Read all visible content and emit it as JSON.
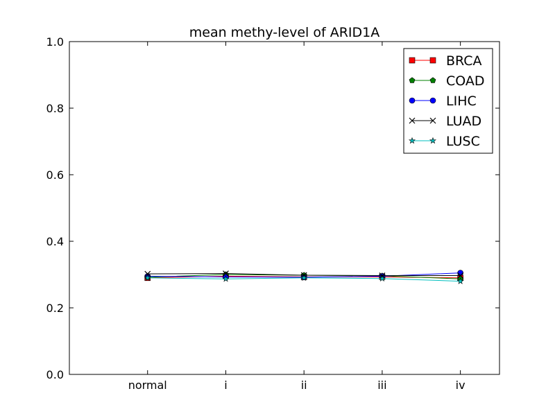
{
  "chart_data": {
    "type": "line",
    "title": "mean methy-level of ARID1A",
    "xlabel": "",
    "ylabel": "",
    "categories": [
      "normal",
      "i",
      "ii",
      "iii",
      "iv"
    ],
    "ylim": [
      0.0,
      1.0
    ],
    "yticks": [
      "0.0",
      "0.2",
      "0.4",
      "0.6",
      "0.8",
      "1.0"
    ],
    "grid": false,
    "legend_position": "top-right",
    "series": [
      {
        "name": "BRCA",
        "color": "#ff0000",
        "marker": "square",
        "values": [
          0.29,
          0.295,
          0.293,
          0.293,
          0.29
        ]
      },
      {
        "name": "COAD",
        "color": "#008000",
        "marker": "pentagon",
        "values": [
          0.292,
          0.3,
          0.298,
          0.296,
          0.287
        ]
      },
      {
        "name": "LIHC",
        "color": "#0000ff",
        "marker": "circle",
        "values": [
          0.295,
          0.293,
          0.292,
          0.295,
          0.305
        ]
      },
      {
        "name": "LUAD",
        "color": "#000000",
        "marker": "x",
        "values": [
          0.302,
          0.303,
          0.298,
          0.297,
          0.297
        ]
      },
      {
        "name": "LUSC",
        "color": "#00bfbf",
        "marker": "star",
        "values": [
          0.29,
          0.287,
          0.29,
          0.288,
          0.28
        ]
      }
    ]
  }
}
